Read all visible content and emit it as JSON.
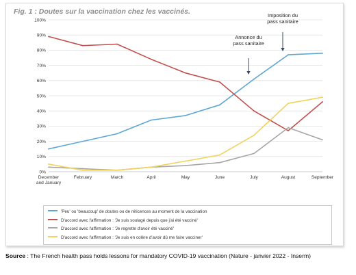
{
  "chart_data": {
    "type": "line",
    "title": "Fig. 1 : Doutes sur la vaccination chez les vaccinés.",
    "categories": [
      "December\nand January",
      "February",
      "March",
      "April",
      "May",
      "June",
      "July",
      "August",
      "September"
    ],
    "yticks": [
      "0%",
      "10%",
      "20%",
      "30%",
      "40%",
      "50%",
      "60%",
      "70%",
      "80%",
      "90%",
      "100%"
    ],
    "ylim": [
      0,
      100
    ],
    "grid": true,
    "legend_position": "bottom",
    "series": [
      {
        "name": "'Peu' ou 'beaucoup' de doutes ou de réticences au moment de la vaccination",
        "color": "#5ea7d1",
        "values": [
          15,
          20,
          25,
          34,
          37,
          44,
          61,
          77,
          78
        ]
      },
      {
        "name": "D'accord avec l'affirmation : 'Je suis soulagé depuis que j'ai été vacciné'",
        "color": "#c0504d",
        "values": [
          89,
          83,
          84,
          74,
          65,
          59,
          40,
          27,
          46
        ]
      },
      {
        "name": "D'accord avec l'affirmation : 'Je regrette d'avoir été vacciné'",
        "color": "#a6a6a6",
        "values": [
          3,
          2,
          1,
          3,
          4,
          6,
          12,
          29,
          21
        ]
      },
      {
        "name": "D'accord avec l'affirmation : 'Je suis en colère d'avoir dû me faire vacciner'",
        "color": "#f0d35e",
        "values": [
          5,
          1,
          1,
          3,
          7,
          11,
          24,
          45,
          49
        ]
      }
    ],
    "annotations": [
      {
        "text": "Annonce du\npass sanitaire",
        "x": "July"
      },
      {
        "text": "Imposition du\npass sanitaire",
        "x": "August"
      }
    ]
  },
  "source": {
    "label": "Source",
    "text": " : The French health pass holds lessons for mandatory COVID-19 vaccination (Nature - janvier 2022 - Inserm)"
  }
}
